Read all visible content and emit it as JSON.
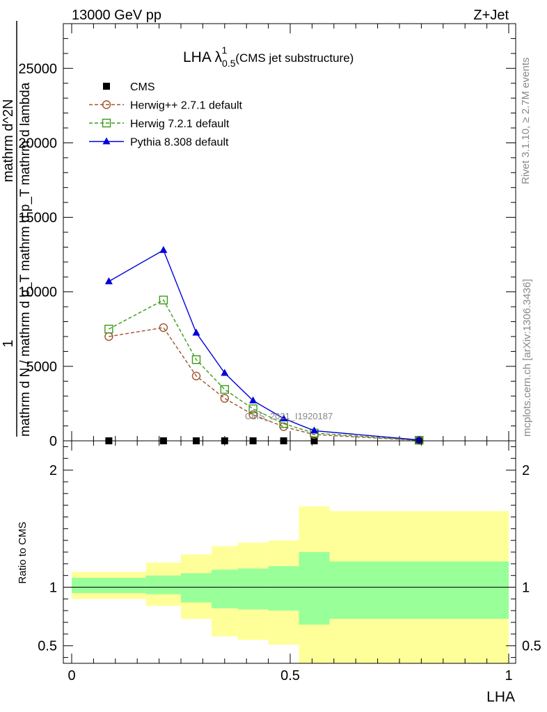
{
  "header": {
    "energy": "13000 GeV pp",
    "process": "Z+Jet"
  },
  "side_labels": {
    "rivet": "Rivet 3.1.10, ≥ 2.7M events",
    "mcplots": "mcplots.cern.ch [arXiv:1306.3436]"
  },
  "title": {
    "main": "LHA λ",
    "sup": "1",
    "sub": "0.5",
    "suffix": "(CMS jet substructure)"
  },
  "watermark": "CMS_2021_I1920187",
  "ylabel_top": {
    "numerator": "1",
    "denominator": "mathrm d N / mathrm d p_T mathrm d p_T mathrm d lambda",
    "rotated_main": "mathrm d^2N"
  },
  "ylabel_bottom": "Ratio to CMS",
  "xlabel": "LHA",
  "legend": [
    {
      "label": "CMS",
      "color": "#000000",
      "marker": "square-filled",
      "line": "none"
    },
    {
      "label": "Herwig++ 2.7.1 default",
      "color": "#a0522d",
      "marker": "circle-open",
      "line": "dashed"
    },
    {
      "label": "Herwig 7.2.1 default",
      "color": "#3a9a1a",
      "marker": "square-open",
      "line": "dashed"
    },
    {
      "label": "Pythia 8.308 default",
      "color": "#0000dd",
      "marker": "triangle-filled",
      "line": "solid"
    }
  ],
  "chart_data": [
    {
      "type": "line",
      "panel": "main",
      "xlim": [
        0,
        1
      ],
      "ylim": [
        0,
        28000
      ],
      "yticks": [
        0,
        5000,
        10000,
        15000,
        20000,
        25000
      ],
      "ytick_labels": [
        "0",
        "5000",
        "10000",
        "15000",
        "20000",
        "25000"
      ],
      "x": [
        0.085,
        0.21,
        0.285,
        0.35,
        0.415,
        0.485,
        0.555,
        0.795
      ],
      "series": [
        {
          "name": "CMS",
          "values": [
            0,
            0,
            0,
            0,
            0,
            0,
            0,
            0
          ]
        },
        {
          "name": "Herwig++ 2.7.1 default",
          "values": [
            7000,
            7600,
            4350,
            2850,
            1750,
            950,
            420,
            30
          ]
        },
        {
          "name": "Herwig 7.2.1 default",
          "values": [
            7500,
            9450,
            5450,
            3450,
            2150,
            1150,
            520,
            40
          ]
        },
        {
          "name": "Pythia 8.308 default",
          "values": [
            10700,
            12800,
            7250,
            4550,
            2700,
            1500,
            680,
            60
          ]
        }
      ]
    },
    {
      "type": "area",
      "panel": "ratio",
      "xlim": [
        0,
        1
      ],
      "ylim": [
        0.35,
        2.25
      ],
      "yticks": [
        0.5,
        1,
        2
      ],
      "ytick_labels": [
        "0.5",
        "1",
        "2"
      ],
      "xticks": [
        0,
        0.5,
        1
      ],
      "xtick_labels": [
        "0",
        "0.5",
        "1"
      ],
      "bin_edges": [
        0,
        0.17,
        0.25,
        0.32,
        0.38,
        0.45,
        0.52,
        0.59,
        1.0
      ],
      "band_inner": {
        "lower": [
          0.95,
          0.94,
          0.87,
          0.82,
          0.81,
          0.8,
          0.68,
          0.73
        ],
        "upper": [
          1.08,
          1.1,
          1.12,
          1.15,
          1.16,
          1.18,
          1.3,
          1.22
        ]
      },
      "band_outer": {
        "lower": [
          0.9,
          0.84,
          0.73,
          0.58,
          0.55,
          0.51,
          0.35,
          0.35
        ],
        "upper": [
          1.13,
          1.21,
          1.28,
          1.35,
          1.38,
          1.4,
          1.69,
          1.65
        ]
      },
      "reference_line": 1,
      "colors": {
        "inner": "#99ff99",
        "outer": "#ffff99"
      }
    }
  ]
}
